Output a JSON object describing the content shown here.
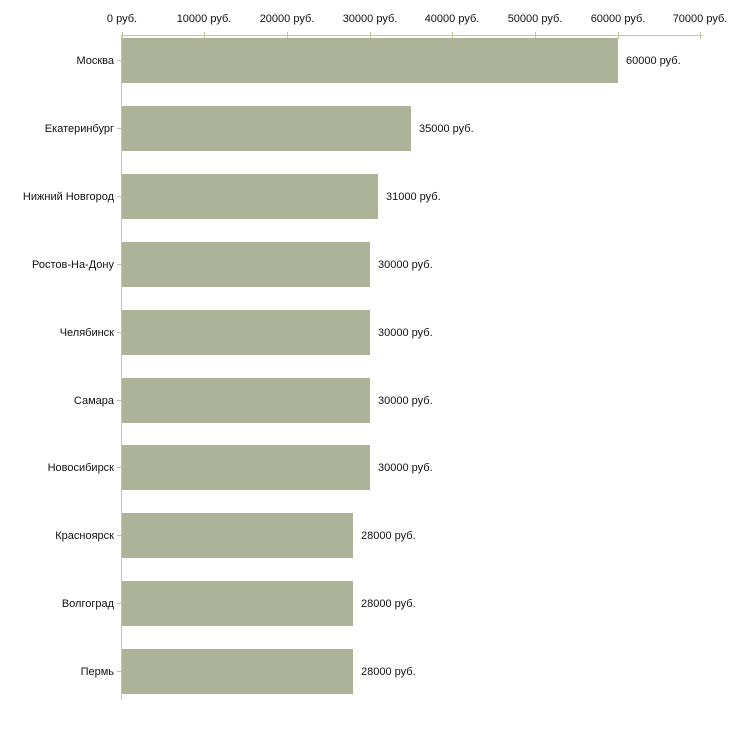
{
  "chart_data": {
    "type": "bar",
    "orientation": "horizontal",
    "unit": "руб.",
    "categories": [
      "Москва",
      "Екатеринбург",
      "Нижний Новгород",
      "Ростов-На-Дону",
      "Челябинск",
      "Самара",
      "Новосибирск",
      "Красноярск",
      "Волгоград",
      "Пермь"
    ],
    "values": [
      60000,
      35000,
      31000,
      30000,
      30000,
      30000,
      30000,
      28000,
      28000,
      28000
    ],
    "value_labels": [
      "60000 руб.",
      "35000 руб.",
      "31000 руб.",
      "30000 руб.",
      "30000 руб.",
      "30000 руб.",
      "30000 руб.",
      "28000 руб.",
      "28000 руб.",
      "28000 руб."
    ],
    "x_axis": {
      "position": "top",
      "range": [
        0,
        70000
      ],
      "ticks": [
        0,
        10000,
        20000,
        30000,
        40000,
        50000,
        60000,
        70000
      ],
      "tick_labels": [
        "0 руб.",
        "10000 руб.",
        "20000 руб.",
        "30000 руб.",
        "40000 руб.",
        "50000 руб.",
        "60000 руб.",
        "70000 руб."
      ]
    },
    "grid": false,
    "legend": false,
    "colors": {
      "bar": "#adb399",
      "axis": "#c3c3c3",
      "x_tick": "#c6c69a",
      "y_tick": "#c0c0aa",
      "text": "#111111",
      "background": "#ffffff"
    }
  }
}
